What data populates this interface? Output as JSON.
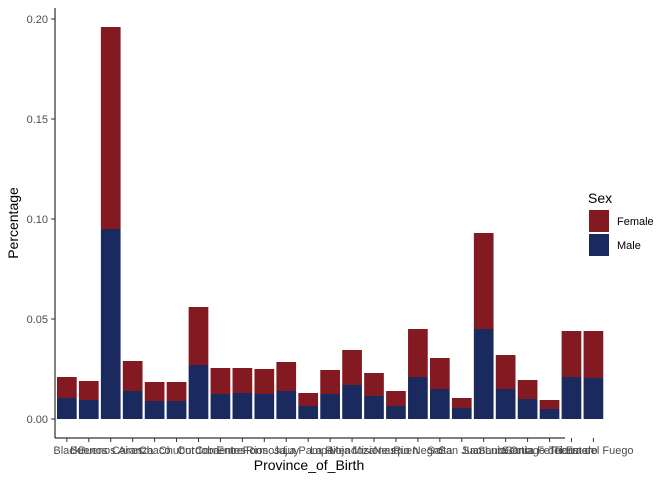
{
  "chart_data": {
    "type": "bar",
    "stacked": true,
    "xlabel": "Province_of_Birth",
    "ylabel": "Percentage",
    "ylim": [
      0,
      0.2
    ],
    "yticks": [
      "0.00",
      "0.05",
      "0.10",
      "0.15",
      "0.20"
    ],
    "ytick_values": [
      0,
      0.05,
      0.1,
      0.15,
      0.2
    ],
    "grid": false,
    "legend": {
      "title": "Sex",
      "placement": "right"
    },
    "categories": [
      "Black",
      "Buenos",
      "Buenos Aires",
      "Caranza",
      "Chaco",
      "Chubut",
      "Cordoba",
      "Corrientes",
      "Entre Rios",
      "Formosa",
      "Jujuy",
      "La Pampa",
      "La Rioja",
      "Mendoza",
      "Misiones",
      "Neuquen",
      "Rio Negro",
      "Salta",
      "San Juan",
      "San Luis",
      "Santa Cruz",
      "Santa Fe",
      "Santiago del Estero",
      "Tucuman",
      "Tierra del Fuego"
    ],
    "series": [
      {
        "name": "Male",
        "color": "#1b2a5e",
        "values": [
          0.0105,
          0.0095,
          0.095,
          0.014,
          0.009,
          0.009,
          0.027,
          0.0125,
          0.013,
          0.0125,
          0.014,
          0.0065,
          0.0125,
          0.017,
          0.0115,
          0.0065,
          0.021,
          0.015,
          0.0055,
          0.045,
          0.015,
          0.01,
          0.005,
          0.021,
          0.0205
        ]
      },
      {
        "name": "Female",
        "color": "#831a22",
        "values": [
          0.0105,
          0.0095,
          0.101,
          0.015,
          0.0095,
          0.0095,
          0.029,
          0.013,
          0.0125,
          0.0125,
          0.0145,
          0.0065,
          0.012,
          0.0175,
          0.0115,
          0.0075,
          0.024,
          0.0155,
          0.005,
          0.048,
          0.017,
          0.0095,
          0.0045,
          0.023,
          0.0235
        ]
      }
    ],
    "tick_labels": [
      "Black",
      "Buenos",
      "Buenos Aires",
      "Caranza",
      "Chaco",
      "Chubut",
      "Cordoba",
      "Corrientes",
      "Entre Rios",
      "Formosa",
      "Jujuy",
      "La Pampa",
      "La Rioja",
      "Mendoza",
      "Misiones",
      "Neuquen",
      "Rio Negro",
      "Salta",
      "San Juan",
      "San Luis",
      "Santa Cruz",
      "Santa Fe",
      "Santiago del Estero",
      "Tucuman",
      "Tierra del Fuego"
    ]
  }
}
